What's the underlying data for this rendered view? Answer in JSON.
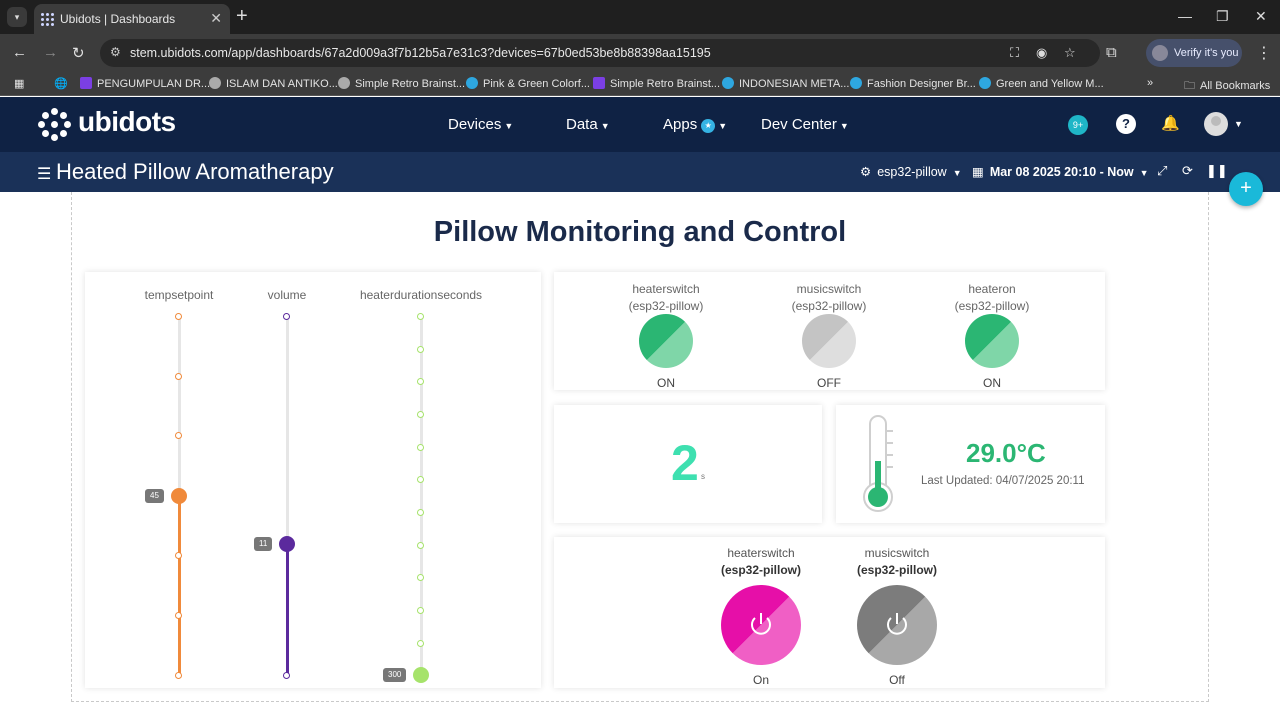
{
  "browser": {
    "tab_title": "Ubidots | Dashboards",
    "url": "stem.ubidots.com/app/dashboards/67a2d009a3f7b12b5a7e31c3?devices=67b0ed53be8b88398aa15195",
    "verify_label": "Verify it's you",
    "bookmarks": [
      "PENGUMPULAN DR...",
      "ISLAM DAN ANTIKO...",
      "Simple Retro Brainst...",
      "Pink & Green Colorf...",
      "Simple Retro Brainst...",
      "INDONESIAN META...",
      "Fashion Designer Br...",
      "Green and Yellow M..."
    ],
    "all_bookmarks": "All Bookmarks"
  },
  "app": {
    "logo_text": "ubidots",
    "menu": [
      "Devices",
      "Data",
      "Apps",
      "Dev Center"
    ],
    "notifications": "9+",
    "help": "?"
  },
  "dashboard": {
    "title": "Heated Pillow Aromatherapy",
    "device": "esp32-pillow",
    "date_range": "Mar 08 2025 20:10 - Now",
    "heading": "Pillow Monitoring and Control"
  },
  "sliders": [
    {
      "label": "tempsetpoint",
      "value": "45",
      "color": "#f08a3b"
    },
    {
      "label": "volume",
      "value": "11",
      "color": "#5b2a9d"
    },
    {
      "label": "heaterdurationseconds",
      "value": "300",
      "color": "#a6e36b"
    }
  ],
  "indicators": [
    {
      "label": "heaterswitch",
      "device": "(esp32-pillow)",
      "state": "ON",
      "color": "#2bb673"
    },
    {
      "label": "musicswitch",
      "device": "(esp32-pillow)",
      "state": "OFF",
      "color": "#c4c4c4"
    },
    {
      "label": "heateron",
      "device": "(esp32-pillow)",
      "state": "ON",
      "color": "#2bb673"
    }
  ],
  "metric": {
    "value": "2",
    "unit": "s"
  },
  "thermometer": {
    "value": "29.0°C",
    "updated": "Last Updated: 04/07/2025 20:11",
    "level": 0.35
  },
  "switches": [
    {
      "label": "heaterswitch",
      "device": "(esp32-pillow)",
      "state": "On",
      "color": "#e60fa8"
    },
    {
      "label": "musicswitch",
      "device": "(esp32-pillow)",
      "state": "Off",
      "color": "#8a8a8a"
    }
  ]
}
